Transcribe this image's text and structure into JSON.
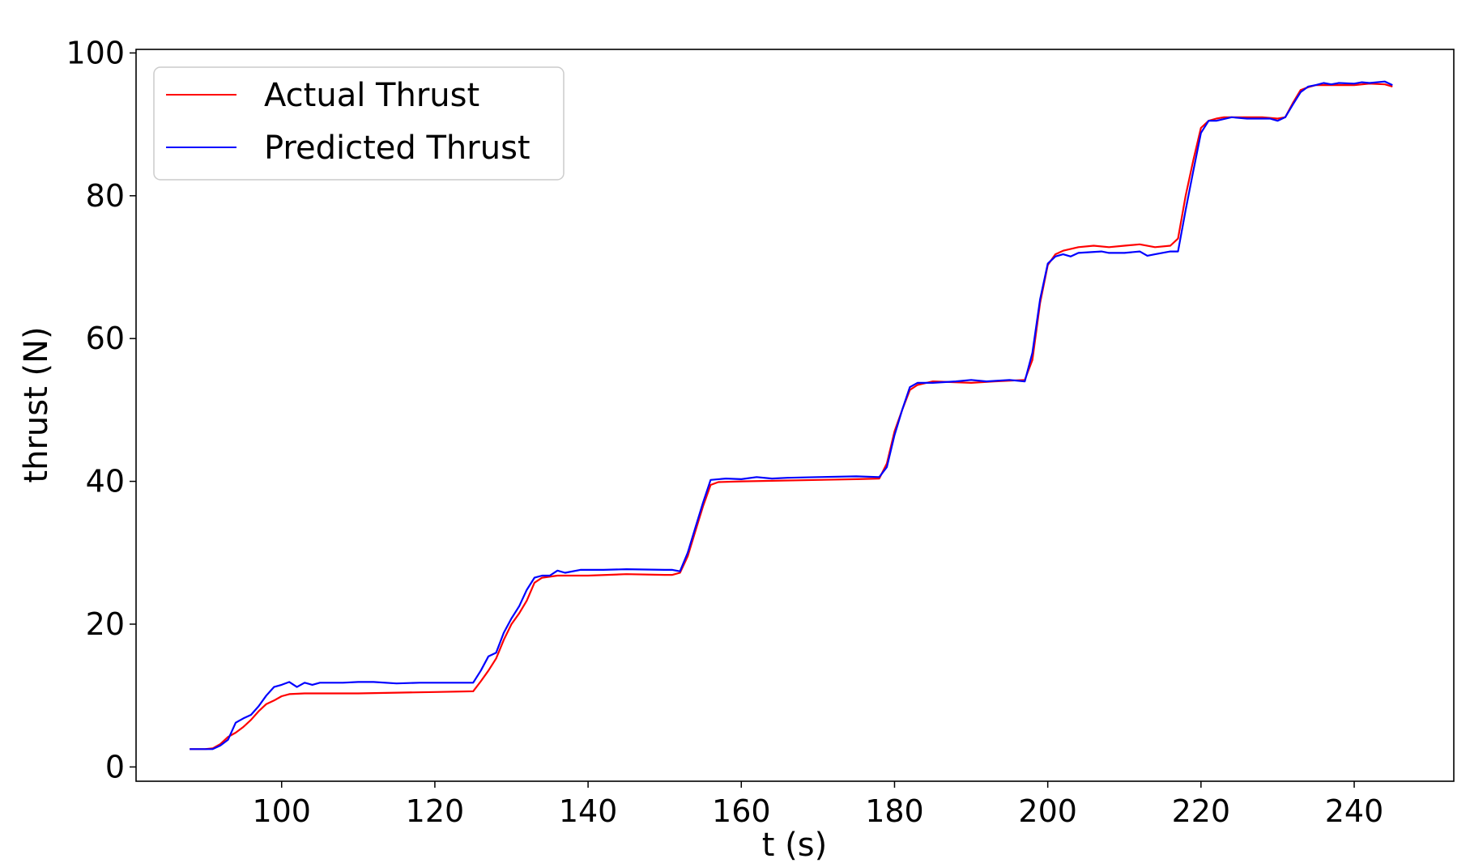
{
  "chart_data": {
    "type": "line",
    "title": "",
    "xlabel": "t (s)",
    "ylabel": "thrust (N)",
    "xlim": [
      81,
      253
    ],
    "ylim": [
      -2,
      100.5
    ],
    "xticks": [
      100,
      120,
      140,
      160,
      180,
      200,
      220,
      240
    ],
    "yticks": [
      0,
      20,
      40,
      60,
      80,
      100
    ],
    "grid": false,
    "legend_position": "top-left",
    "series": [
      {
        "name": "Actual Thrust",
        "color": "#ff0000",
        "points": [
          [
            88,
            2.5
          ],
          [
            90,
            2.5
          ],
          [
            91,
            2.6
          ],
          [
            92,
            3.2
          ],
          [
            93,
            4.2
          ],
          [
            94,
            4.8
          ],
          [
            95,
            5.6
          ],
          [
            96,
            6.6
          ],
          [
            97,
            7.8
          ],
          [
            98,
            8.8
          ],
          [
            99,
            9.3
          ],
          [
            100,
            9.9
          ],
          [
            101,
            10.2
          ],
          [
            103,
            10.3
          ],
          [
            105,
            10.3
          ],
          [
            110,
            10.3
          ],
          [
            115,
            10.4
          ],
          [
            120,
            10.5
          ],
          [
            125,
            10.6
          ],
          [
            126,
            12.0
          ],
          [
            127,
            13.5
          ],
          [
            128,
            15.2
          ],
          [
            129,
            17.8
          ],
          [
            130,
            20.0
          ],
          [
            131,
            21.5
          ],
          [
            132,
            23.3
          ],
          [
            133,
            25.8
          ],
          [
            134,
            26.5
          ],
          [
            136,
            26.8
          ],
          [
            140,
            26.8
          ],
          [
            145,
            27.0
          ],
          [
            150,
            26.9
          ],
          [
            151,
            26.9
          ],
          [
            152,
            27.2
          ],
          [
            153,
            29.5
          ],
          [
            154,
            33.0
          ],
          [
            155,
            36.5
          ],
          [
            156,
            39.5
          ],
          [
            157,
            39.9
          ],
          [
            160,
            40.0
          ],
          [
            170,
            40.2
          ],
          [
            175,
            40.3
          ],
          [
            178,
            40.4
          ],
          [
            179,
            42.5
          ],
          [
            180,
            47.0
          ],
          [
            181,
            50.0
          ],
          [
            182,
            52.8
          ],
          [
            183,
            53.5
          ],
          [
            185,
            54.0
          ],
          [
            190,
            53.8
          ],
          [
            193,
            54.0
          ],
          [
            197,
            54.2
          ],
          [
            198,
            57.0
          ],
          [
            199,
            65.0
          ],
          [
            200,
            70.3
          ],
          [
            201,
            71.8
          ],
          [
            202,
            72.3
          ],
          [
            204,
            72.8
          ],
          [
            206,
            73.0
          ],
          [
            208,
            72.8
          ],
          [
            210,
            73.0
          ],
          [
            212,
            73.2
          ],
          [
            214,
            72.8
          ],
          [
            216,
            73.0
          ],
          [
            217,
            74.0
          ],
          [
            218,
            80.0
          ],
          [
            219,
            85.0
          ],
          [
            220,
            89.5
          ],
          [
            221,
            90.5
          ],
          [
            222,
            90.8
          ],
          [
            223,
            91.0
          ],
          [
            226,
            91.0
          ],
          [
            228,
            91.0
          ],
          [
            230,
            90.8
          ],
          [
            231,
            91.0
          ],
          [
            232,
            93.0
          ],
          [
            233,
            94.8
          ],
          [
            234,
            95.2
          ],
          [
            235,
            95.5
          ],
          [
            236,
            95.5
          ],
          [
            238,
            95.5
          ],
          [
            240,
            95.5
          ],
          [
            242,
            95.7
          ],
          [
            244,
            95.6
          ],
          [
            245,
            95.3
          ]
        ]
      },
      {
        "name": "Predicted Thrust",
        "color": "#0000ff",
        "points": [
          [
            88,
            2.5
          ],
          [
            91,
            2.5
          ],
          [
            92,
            3.0
          ],
          [
            93,
            3.8
          ],
          [
            94,
            6.2
          ],
          [
            95,
            6.8
          ],
          [
            96,
            7.3
          ],
          [
            97,
            8.5
          ],
          [
            98,
            10.0
          ],
          [
            99,
            11.2
          ],
          [
            100,
            11.5
          ],
          [
            101,
            11.9
          ],
          [
            102,
            11.2
          ],
          [
            103,
            11.8
          ],
          [
            104,
            11.5
          ],
          [
            105,
            11.8
          ],
          [
            108,
            11.8
          ],
          [
            110,
            11.9
          ],
          [
            112,
            11.9
          ],
          [
            115,
            11.7
          ],
          [
            118,
            11.8
          ],
          [
            122,
            11.8
          ],
          [
            125,
            11.8
          ],
          [
            126,
            13.5
          ],
          [
            127,
            15.5
          ],
          [
            128,
            16.0
          ],
          [
            129,
            18.8
          ],
          [
            130,
            20.8
          ],
          [
            131,
            22.5
          ],
          [
            132,
            24.8
          ],
          [
            133,
            26.5
          ],
          [
            134,
            26.8
          ],
          [
            135,
            26.8
          ],
          [
            136,
            27.5
          ],
          [
            137,
            27.2
          ],
          [
            139,
            27.6
          ],
          [
            142,
            27.6
          ],
          [
            145,
            27.7
          ],
          [
            150,
            27.6
          ],
          [
            151,
            27.6
          ],
          [
            152,
            27.4
          ],
          [
            153,
            30.0
          ],
          [
            154,
            33.5
          ],
          [
            155,
            37.0
          ],
          [
            156,
            40.2
          ],
          [
            158,
            40.4
          ],
          [
            160,
            40.3
          ],
          [
            162,
            40.6
          ],
          [
            164,
            40.4
          ],
          [
            166,
            40.5
          ],
          [
            170,
            40.6
          ],
          [
            175,
            40.7
          ],
          [
            178,
            40.6
          ],
          [
            179,
            42.0
          ],
          [
            180,
            46.5
          ],
          [
            181,
            50.0
          ],
          [
            182,
            53.2
          ],
          [
            183,
            53.8
          ],
          [
            185,
            53.8
          ],
          [
            188,
            54.0
          ],
          [
            190,
            54.2
          ],
          [
            192,
            54.0
          ],
          [
            195,
            54.2
          ],
          [
            197,
            54.0
          ],
          [
            198,
            58.0
          ],
          [
            199,
            65.5
          ],
          [
            200,
            70.5
          ],
          [
            201,
            71.5
          ],
          [
            202,
            71.8
          ],
          [
            203,
            71.5
          ],
          [
            204,
            72.0
          ],
          [
            207,
            72.2
          ],
          [
            208,
            72.0
          ],
          [
            210,
            72.0
          ],
          [
            212,
            72.2
          ],
          [
            213,
            71.6
          ],
          [
            214,
            71.8
          ],
          [
            216,
            72.2
          ],
          [
            217,
            72.2
          ],
          [
            218,
            78.0
          ],
          [
            219,
            83.5
          ],
          [
            220,
            88.8
          ],
          [
            221,
            90.5
          ],
          [
            222,
            90.5
          ],
          [
            224,
            91.0
          ],
          [
            226,
            90.8
          ],
          [
            228,
            90.8
          ],
          [
            229,
            90.8
          ],
          [
            230,
            90.5
          ],
          [
            231,
            91.0
          ],
          [
            232,
            92.8
          ],
          [
            233,
            94.5
          ],
          [
            234,
            95.3
          ],
          [
            235,
            95.5
          ],
          [
            236,
            95.8
          ],
          [
            237,
            95.6
          ],
          [
            238,
            95.8
          ],
          [
            240,
            95.7
          ],
          [
            241,
            95.9
          ],
          [
            242,
            95.8
          ],
          [
            244,
            96.0
          ],
          [
            245,
            95.5
          ]
        ]
      }
    ]
  }
}
